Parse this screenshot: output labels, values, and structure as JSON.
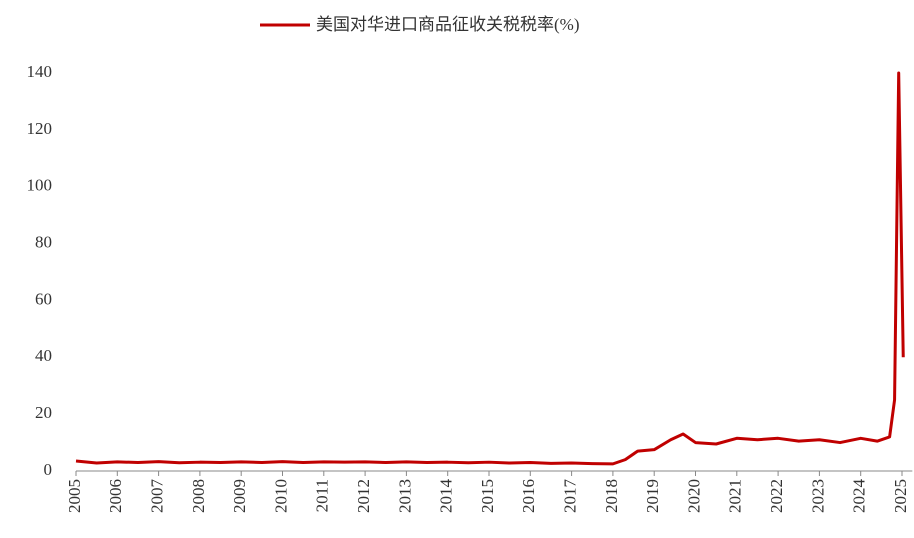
{
  "chart_data": {
    "type": "line",
    "series": [
      {
        "name": "美国对华进口商品征收关税税率(%)",
        "color": "#c00000",
        "x": [
          2005.0,
          2005.5,
          2006.0,
          2006.5,
          2007.0,
          2007.5,
          2008.0,
          2008.5,
          2009.0,
          2009.5,
          2010.0,
          2010.5,
          2011.0,
          2011.5,
          2012.0,
          2012.5,
          2013.0,
          2013.5,
          2014.0,
          2014.5,
          2015.0,
          2015.5,
          2016.0,
          2016.5,
          2017.0,
          2017.5,
          2018.0,
          2018.3,
          2018.6,
          2019.0,
          2019.4,
          2019.7,
          2020.0,
          2020.5,
          2021.0,
          2021.5,
          2022.0,
          2022.5,
          2023.0,
          2023.5,
          2024.0,
          2024.4,
          2024.7,
          2024.82,
          2024.92,
          2025.03
        ],
        "values": [
          3.5,
          2.8,
          3.2,
          3.0,
          3.3,
          2.9,
          3.1,
          3.0,
          3.2,
          3.0,
          3.3,
          3.0,
          3.2,
          3.1,
          3.2,
          3.0,
          3.2,
          3.0,
          3.1,
          2.9,
          3.1,
          2.8,
          3.0,
          2.7,
          2.8,
          2.6,
          2.5,
          4.0,
          7.0,
          7.5,
          11.0,
          13.0,
          10.0,
          9.5,
          11.5,
          11.0,
          11.5,
          10.5,
          11.0,
          10.0,
          11.5,
          10.5,
          12.0,
          25.0,
          140.0,
          40.0
        ]
      }
    ],
    "xlim": [
      2005,
      2025.25
    ],
    "xticks": [
      2005,
      2006,
      2007,
      2008,
      2009,
      2010,
      2011,
      2012,
      2013,
      2014,
      2015,
      2016,
      2017,
      2018,
      2019,
      2020,
      2021,
      2022,
      2023,
      2024,
      2025
    ],
    "ylim": [
      0,
      140
    ],
    "yticks": [
      0,
      20,
      40,
      60,
      80,
      100,
      120,
      140
    ],
    "legend": "top"
  }
}
